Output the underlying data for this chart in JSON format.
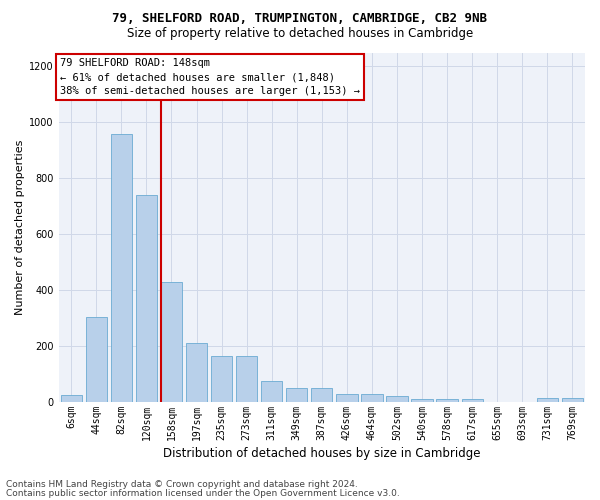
{
  "title": "79, SHELFORD ROAD, TRUMPINGTON, CAMBRIDGE, CB2 9NB",
  "subtitle": "Size of property relative to detached houses in Cambridge",
  "xlabel": "Distribution of detached houses by size in Cambridge",
  "ylabel": "Number of detached properties",
  "footnote1": "Contains HM Land Registry data © Crown copyright and database right 2024.",
  "footnote2": "Contains public sector information licensed under the Open Government Licence v3.0.",
  "bar_labels": [
    "6sqm",
    "44sqm",
    "82sqm",
    "120sqm",
    "158sqm",
    "197sqm",
    "235sqm",
    "273sqm",
    "311sqm",
    "349sqm",
    "387sqm",
    "426sqm",
    "464sqm",
    "502sqm",
    "540sqm",
    "578sqm",
    "617sqm",
    "655sqm",
    "693sqm",
    "731sqm",
    "769sqm"
  ],
  "bar_values": [
    25,
    305,
    960,
    740,
    430,
    210,
    165,
    165,
    75,
    50,
    50,
    30,
    30,
    20,
    12,
    12,
    12,
    0,
    0,
    15,
    15
  ],
  "bar_color": "#b8d0ea",
  "bar_edge_color": "#6aabd2",
  "highlight_index": 4,
  "highlight_line_color": "#cc0000",
  "annotation_line1": "79 SHELFORD ROAD: 148sqm",
  "annotation_line2": "← 61% of detached houses are smaller (1,848)",
  "annotation_line3": "38% of semi-detached houses are larger (1,153) →",
  "annotation_box_edgecolor": "#cc0000",
  "ylim": [
    0,
    1250
  ],
  "yticks": [
    0,
    200,
    400,
    600,
    800,
    1000,
    1200
  ],
  "grid_color": "#d0d8e8",
  "bg_color": "#eef2f9",
  "title_fontsize": 9,
  "subtitle_fontsize": 8.5,
  "ylabel_fontsize": 8,
  "xlabel_fontsize": 8.5,
  "tick_fontsize": 7,
  "annot_fontsize": 7.5,
  "footnote_fontsize": 6.5
}
